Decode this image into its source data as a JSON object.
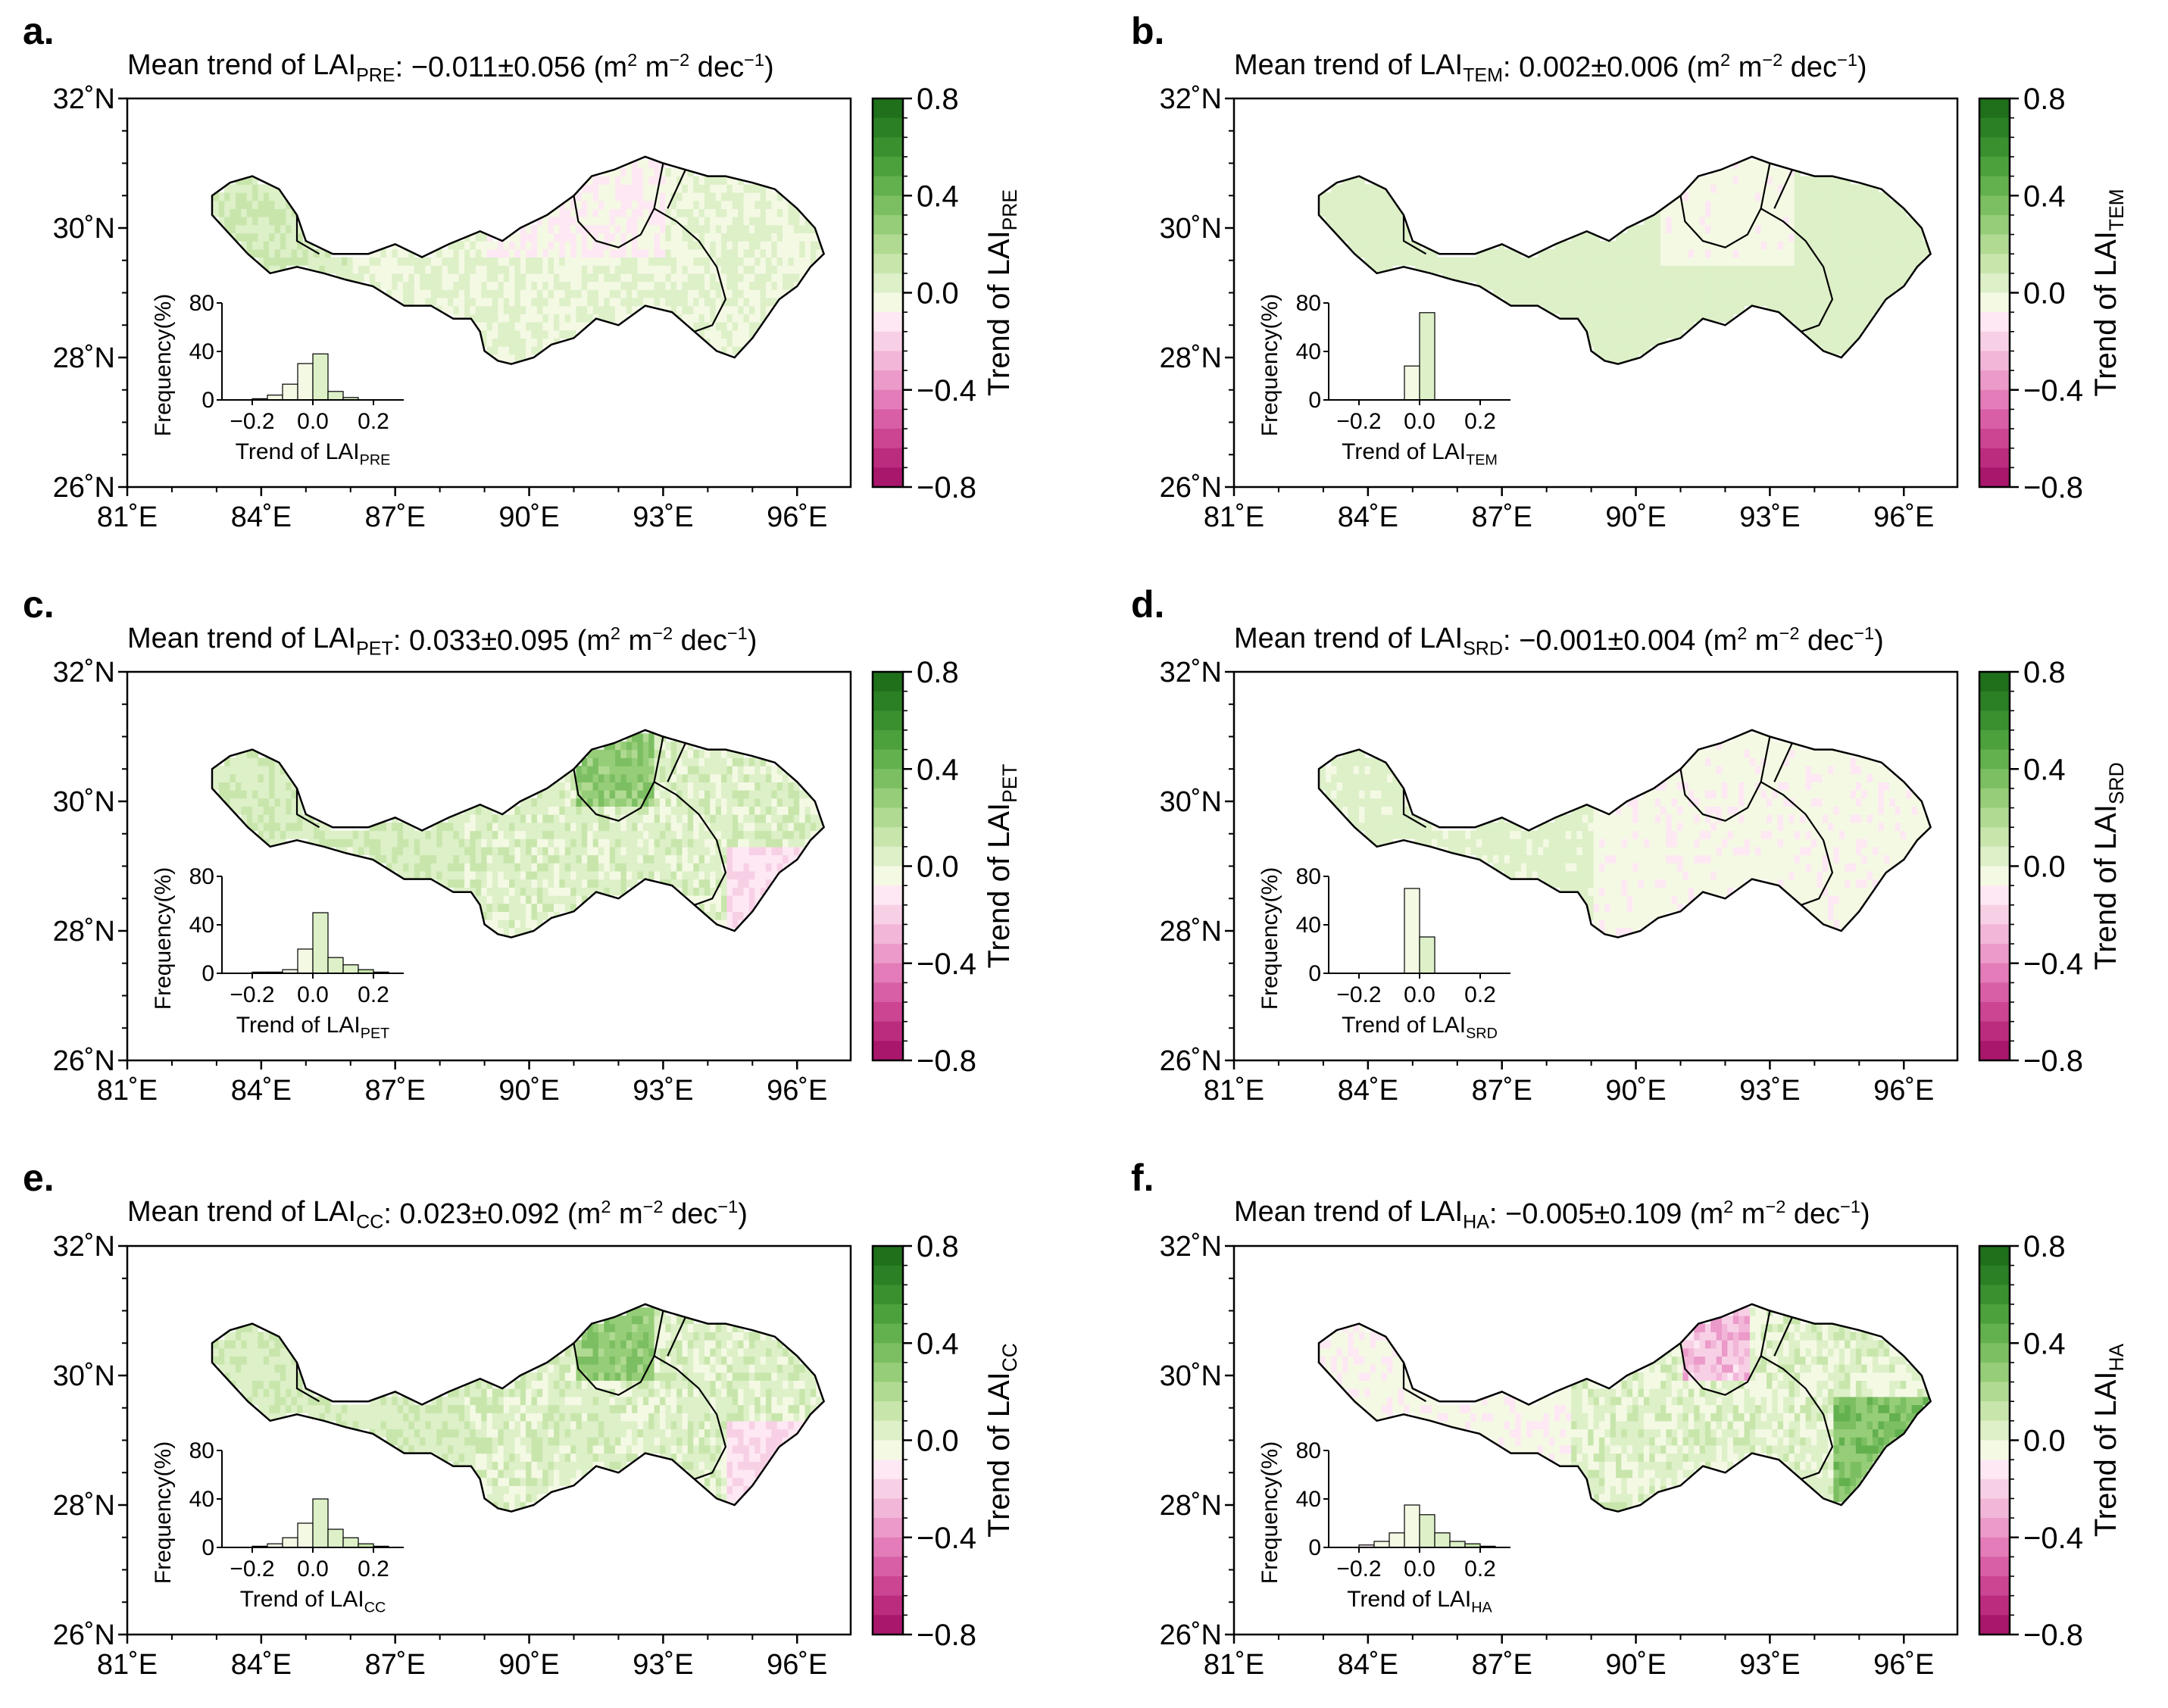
{
  "figure": {
    "lon_ticks": [
      "81˚E",
      "84˚E",
      "87˚E",
      "90˚E",
      "93˚E",
      "96˚E"
    ],
    "lat_ticks": [
      "32˚N",
      "30˚N",
      "28˚N",
      "26˚N"
    ],
    "colorbar_ticks": [
      "0.8",
      "0.4",
      "0.0",
      "−0.4",
      "−0.8"
    ],
    "colorbar_colors": [
      "#1f6f1b",
      "#2b7f24",
      "#3a902f",
      "#4da13d",
      "#63b04f",
      "#7cbf62",
      "#96cd78",
      "#b0da92",
      "#c8e6ac",
      "#ddf0c8",
      "#f4f9e4",
      "#fde8f3",
      "#f8d0e6",
      "#f2b6d8",
      "#eb9ac9",
      "#e37cb8",
      "#d85fa5",
      "#cb4592",
      "#bb2c7f",
      "#a8176b"
    ],
    "inset": {
      "y_label": "Frequency(%)",
      "y_ticks": [
        "80",
        "40",
        "0"
      ],
      "x_ticks": [
        "−0.2",
        "0.0",
        "0.2"
      ],
      "x_label_prefix": "Trend of LAI"
    }
  },
  "panels": [
    {
      "letter": "a.",
      "title_prefix": "Mean trend of LAI",
      "sub": "PRE",
      "value": ": −0.011±0.056 (m",
      "unit_m": " m",
      "unit_dec": " dec",
      "close": ")",
      "sup2": "2",
      "supm2": "−2",
      "supm1": "−1",
      "cbar_label": "Trend of LAI",
      "cbar_sub": "PRE",
      "inset_x_sub": "PRE",
      "map_tone": "mixed",
      "histogram": {
        "bins": [
          -0.25,
          -0.2,
          -0.15,
          -0.1,
          -0.05,
          0.0,
          0.05,
          0.1,
          0.15,
          0.2,
          0.25
        ],
        "freq": [
          0,
          1,
          4,
          13,
          30,
          38,
          7,
          2,
          0,
          0
        ]
      }
    },
    {
      "letter": "b.",
      "title_prefix": "Mean trend of LAI",
      "sub": "TEM",
      "value": ": 0.002±0.006 (m",
      "unit_m": " m",
      "unit_dec": " dec",
      "close": ")",
      "sup2": "2",
      "supm2": "−2",
      "supm1": "−1",
      "cbar_label": "Trend of LAI",
      "cbar_sub": "TEM",
      "inset_x_sub": "TEM",
      "map_tone": "light",
      "histogram": {
        "bins": [
          -0.25,
          -0.2,
          -0.15,
          -0.1,
          -0.05,
          0.0,
          0.05,
          0.1,
          0.15,
          0.2,
          0.25
        ],
        "freq": [
          0,
          0,
          0,
          0,
          28,
          72,
          0,
          0,
          0,
          0
        ]
      }
    },
    {
      "letter": "c.",
      "title_prefix": "Mean trend of LAI",
      "sub": "PET",
      "value": ": 0.033±0.095 (m",
      "unit_m": " m",
      "unit_dec": " dec",
      "close": ")",
      "sup2": "2",
      "supm2": "−2",
      "supm1": "−1",
      "cbar_label": "Trend of LAI",
      "cbar_sub": "PET",
      "inset_x_sub": "PET",
      "map_tone": "green",
      "histogram": {
        "bins": [
          -0.25,
          -0.2,
          -0.15,
          -0.1,
          -0.05,
          0.0,
          0.05,
          0.1,
          0.15,
          0.2,
          0.25
        ],
        "freq": [
          0,
          1,
          1,
          3,
          20,
          50,
          13,
          7,
          3,
          1
        ]
      }
    },
    {
      "letter": "d.",
      "title_prefix": "Mean trend of LAI",
      "sub": "SRD",
      "value": ": −0.001±0.004 (m",
      "unit_m": " m",
      "unit_dec": " dec",
      "close": ")",
      "sup2": "2",
      "supm2": "−2",
      "supm1": "−1",
      "cbar_label": "Trend of LAI",
      "cbar_sub": "SRD",
      "inset_x_sub": "SRD",
      "map_tone": "pink",
      "histogram": {
        "bins": [
          -0.25,
          -0.2,
          -0.15,
          -0.1,
          -0.05,
          0.0,
          0.05,
          0.1,
          0.15,
          0.2,
          0.25
        ],
        "freq": [
          0,
          0,
          0,
          0,
          70,
          30,
          0,
          0,
          0,
          0
        ]
      }
    },
    {
      "letter": "e.",
      "title_prefix": "Mean trend of LAI",
      "sub": "CC",
      "value": ": 0.023±0.092 (m",
      "unit_m": " m",
      "unit_dec": " dec",
      "close": ")",
      "sup2": "2",
      "supm2": "−2",
      "supm1": "−1",
      "cbar_label": "Trend of LAI",
      "cbar_sub": "CC",
      "inset_x_sub": "CC",
      "map_tone": "green",
      "histogram": {
        "bins": [
          -0.25,
          -0.2,
          -0.15,
          -0.1,
          -0.05,
          0.0,
          0.05,
          0.1,
          0.15,
          0.2,
          0.25
        ],
        "freq": [
          0,
          1,
          3,
          8,
          20,
          40,
          15,
          8,
          3,
          1
        ]
      }
    },
    {
      "letter": "f.",
      "title_prefix": "Mean trend of LAI",
      "sub": "HA",
      "value": ": −0.005±0.109 (m",
      "unit_m": " m",
      "unit_dec": " dec",
      "close": ")",
      "sup2": "2",
      "supm2": "−2",
      "supm1": "−1",
      "cbar_label": "Trend of LAI",
      "cbar_sub": "HA",
      "inset_x_sub": "HA",
      "map_tone": "mixed2",
      "histogram": {
        "bins": [
          -0.25,
          -0.2,
          -0.15,
          -0.1,
          -0.05,
          0.0,
          0.05,
          0.1,
          0.15,
          0.2,
          0.25
        ],
        "freq": [
          0,
          2,
          5,
          12,
          35,
          27,
          12,
          5,
          3,
          1
        ]
      }
    }
  ]
}
